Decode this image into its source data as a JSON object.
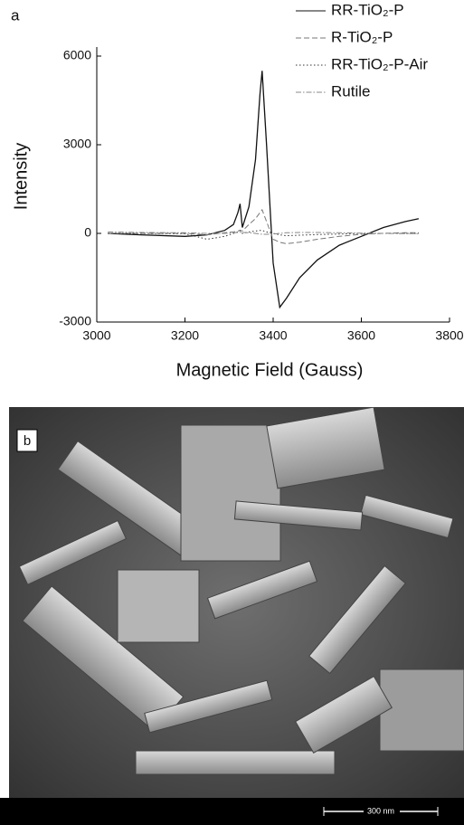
{
  "chart_data": {
    "type": "line",
    "panel_label": "a",
    "ylabel": "Intensity",
    "xlabel": "Magnetic Field (Gauss)",
    "xlim": [
      3000,
      3800
    ],
    "xticks": [
      3000,
      3200,
      3400,
      3600,
      3800
    ],
    "ylim": [
      -3000,
      6000
    ],
    "yticks": [
      -3000,
      0,
      3000,
      6000
    ],
    "legend": "top-right",
    "x": [
      3025,
      3100,
      3200,
      3250,
      3290,
      3310,
      3320,
      3325,
      3330,
      3345,
      3360,
      3370,
      3375,
      3385,
      3400,
      3415,
      3430,
      3460,
      3500,
      3550,
      3600,
      3650,
      3700,
      3730
    ],
    "series": [
      {
        "name": "RR-TiO₂-P",
        "color": "#111111",
        "dash": "solid",
        "values": [
          0,
          -50,
          -100,
          -50,
          100,
          300,
          700,
          1000,
          200,
          900,
          2500,
          4700,
          5500,
          3000,
          -1000,
          -2500,
          -2200,
          -1500,
          -900,
          -400,
          -100,
          200,
          400,
          500
        ]
      },
      {
        "name": "R-TiO₂-P",
        "color": "#777777",
        "dash": "dashed",
        "values": [
          0,
          0,
          0,
          -50,
          20,
          50,
          80,
          100,
          80,
          300,
          500,
          700,
          800,
          400,
          -200,
          -300,
          -350,
          -300,
          -200,
          -100,
          -30,
          0,
          20,
          20
        ]
      },
      {
        "name": "RR-TiO₂-P-Air",
        "color": "#333333",
        "dash": "dotted",
        "values": [
          0,
          0,
          -10,
          -200,
          -100,
          0,
          50,
          100,
          0,
          50,
          80,
          100,
          100,
          50,
          0,
          -50,
          -80,
          -60,
          -40,
          -20,
          0,
          0,
          0,
          0
        ]
      },
      {
        "name": "Rutile",
        "color": "#888888",
        "dash": "dashdot",
        "values": [
          50,
          30,
          20,
          0,
          0,
          20,
          30,
          40,
          30,
          20,
          0,
          -20,
          -30,
          -30,
          -20,
          0,
          20,
          30,
          30,
          20,
          10,
          0,
          -10,
          -10
        ]
      }
    ]
  },
  "image": {
    "panel_label": "b",
    "scale_bar": "300 nm"
  }
}
